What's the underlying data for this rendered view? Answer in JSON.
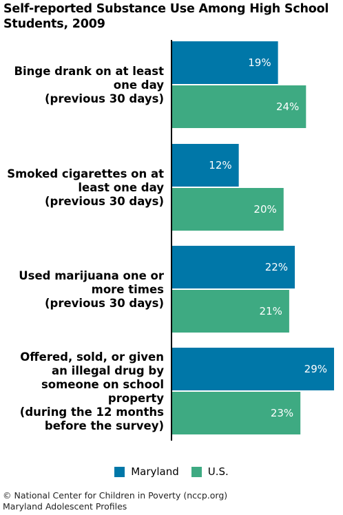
{
  "title": "Self-reported Substance Use Among High School Students, 2009",
  "colors": {
    "maryland": "#0077a8",
    "us": "#3eaa82"
  },
  "chart_data": {
    "type": "bar",
    "orientation": "horizontal",
    "title": "Self-reported Substance Use Among High School Students, 2009",
    "categories": [
      [
        "Binge drank on at least",
        "one day",
        "(previous 30 days)"
      ],
      [
        "Smoked cigarettes on at",
        "least one day",
        "(previous 30 days)"
      ],
      [
        "Used marijuana one or",
        "more times",
        "(previous 30 days)"
      ],
      [
        "Offered, sold, or given",
        "an illegal drug by",
        "someone on school",
        "property",
        "(during the 12 months",
        "before the survey)"
      ]
    ],
    "series": [
      {
        "name": "Maryland",
        "values": [
          19,
          12,
          22,
          29
        ],
        "labels": [
          "19%",
          "12%",
          "22%",
          "29%"
        ]
      },
      {
        "name": "U.S.",
        "values": [
          24,
          20,
          21,
          23
        ],
        "labels": [
          "24%",
          "20%",
          "21%",
          "23%"
        ]
      }
    ],
    "xlim": [
      0,
      29
    ],
    "legend": "bottom-center",
    "grid": false
  },
  "legend": {
    "maryland": "Maryland",
    "us": "U.S."
  },
  "footer": {
    "line1": "© National Center for Children in Poverty (nccp.org)",
    "line2": "Maryland Adolescent Profiles"
  }
}
